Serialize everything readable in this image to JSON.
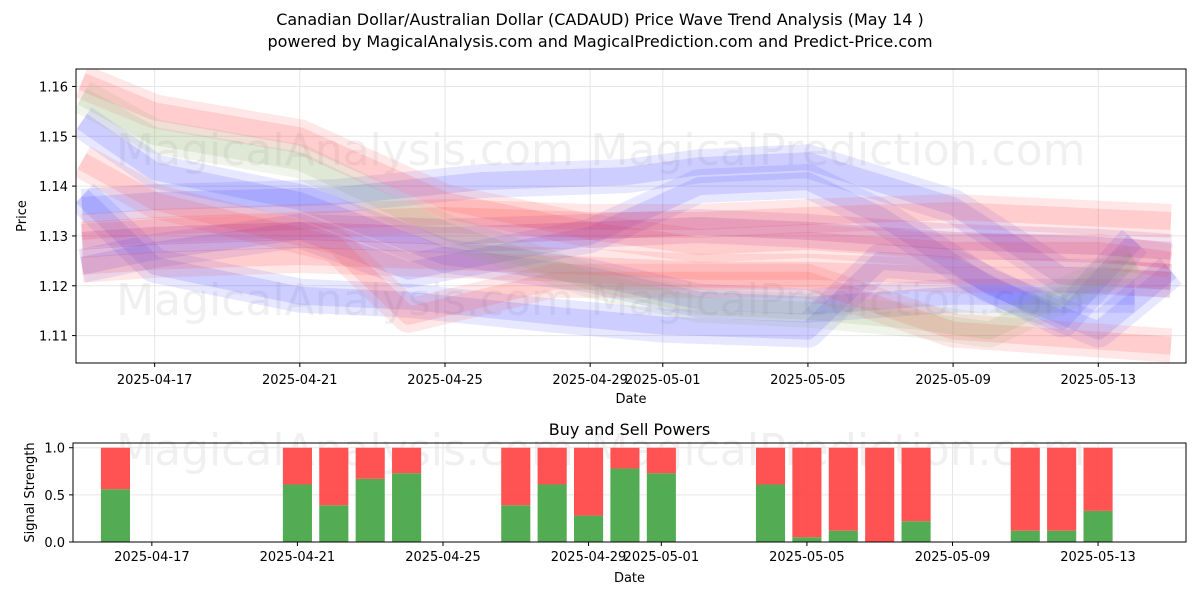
{
  "header": {
    "title": "Canadian Dollar/Australian Dollar (CADAUD) Price Wave Trend Analysis (May 14 )",
    "subtitle": "powered by MagicalAnalysis.com and MagicalPrediction.com and Predict-Price.com"
  },
  "watermark": {
    "text1": "MagicalAnalysis.com",
    "text2": "MagicalPrediction.com"
  },
  "colors": {
    "blue": "#4444ff",
    "red": "#ff4444",
    "green": "#88aa66",
    "purple": "#aa2288",
    "buy": "#4aa84a",
    "sell": "#ff4a4a"
  },
  "chart_data": [
    {
      "type": "line",
      "title": "",
      "xlabel": "Date",
      "ylabel": "Price",
      "x_ticks": [
        "2025-04-17",
        "2025-04-21",
        "2025-04-25",
        "2025-04-29",
        "2025-05-01",
        "2025-05-05",
        "2025-05-09",
        "2025-05-13"
      ],
      "y_ticks": [
        "1.11",
        "1.12",
        "1.13",
        "1.14",
        "1.15",
        "1.16"
      ],
      "ylim": [
        1.1045,
        1.1635
      ],
      "xlim": [
        "2025-04-14T20:00",
        "2025-05-15T10:00"
      ],
      "grid": true,
      "series": [
        {
          "color": "blue",
          "x": [
            "2025-04-15",
            "2025-04-17",
            "2025-04-22",
            "2025-04-26",
            "2025-04-30",
            "2025-05-02",
            "2025-05-05",
            "2025-05-09",
            "2025-05-12",
            "2025-05-15"
          ],
          "values": [
            1.136,
            1.137,
            1.138,
            1.141,
            1.142,
            1.144,
            1.145,
            1.136,
            1.122,
            1.121
          ]
        },
        {
          "color": "blue",
          "x": [
            "2025-04-15",
            "2025-04-17",
            "2025-04-21",
            "2025-04-25",
            "2025-04-29",
            "2025-05-02",
            "2025-05-05",
            "2025-05-09",
            "2025-05-14"
          ],
          "values": [
            1.153,
            1.143,
            1.137,
            1.126,
            1.122,
            1.117,
            1.116,
            1.118,
            1.118
          ]
        },
        {
          "color": "blue",
          "x": [
            "2025-04-15",
            "2025-04-17",
            "2025-04-21",
            "2025-04-24",
            "2025-04-28",
            "2025-05-01",
            "2025-05-05",
            "2025-05-07",
            "2025-05-09",
            "2025-05-12",
            "2025-05-14"
          ],
          "values": [
            1.138,
            1.124,
            1.118,
            1.117,
            1.114,
            1.112,
            1.111,
            1.125,
            1.124,
            1.113,
            1.129
          ]
        },
        {
          "color": "blue",
          "x": [
            "2025-04-15",
            "2025-04-17",
            "2025-04-21",
            "2025-04-24",
            "2025-04-29",
            "2025-05-02",
            "2025-05-05",
            "2025-05-07",
            "2025-05-10",
            "2025-05-13",
            "2025-05-15"
          ],
          "values": [
            1.124,
            1.127,
            1.131,
            1.123,
            1.13,
            1.14,
            1.141,
            1.134,
            1.12,
            1.111,
            1.123
          ]
        },
        {
          "color": "red",
          "x": [
            "2025-04-15",
            "2025-04-17",
            "2025-04-21",
            "2025-04-25",
            "2025-04-29",
            "2025-05-02",
            "2025-05-05",
            "2025-05-09",
            "2025-05-13",
            "2025-05-15"
          ],
          "values": [
            1.161,
            1.155,
            1.15,
            1.137,
            1.131,
            1.128,
            1.129,
            1.127,
            1.127,
            1.125
          ]
        },
        {
          "color": "red",
          "x": [
            "2025-04-15",
            "2025-04-17",
            "2025-04-21",
            "2025-04-25",
            "2025-04-29",
            "2025-05-02",
            "2025-05-05",
            "2025-05-09",
            "2025-05-13",
            "2025-05-15"
          ],
          "values": [
            1.124,
            1.125,
            1.126,
            1.125,
            1.124,
            1.123,
            1.123,
            1.122,
            1.122,
            1.121
          ]
        },
        {
          "color": "red",
          "x": [
            "2025-04-15",
            "2025-04-17",
            "2025-04-22",
            "2025-04-24",
            "2025-04-28",
            "2025-05-02",
            "2025-05-05",
            "2025-05-09",
            "2025-05-13",
            "2025-05-15"
          ],
          "values": [
            1.145,
            1.137,
            1.128,
            1.114,
            1.121,
            1.121,
            1.121,
            1.111,
            1.109,
            1.108
          ]
        },
        {
          "color": "red",
          "x": [
            "2025-04-15",
            "2025-04-17",
            "2025-04-21",
            "2025-04-25",
            "2025-04-29",
            "2025-05-02",
            "2025-05-05",
            "2025-05-09",
            "2025-05-12",
            "2025-05-15"
          ],
          "values": [
            1.131,
            1.132,
            1.133,
            1.134,
            1.133,
            1.133,
            1.134,
            1.135,
            1.134,
            1.133
          ]
        },
        {
          "color": "green",
          "x": [
            "2025-04-15",
            "2025-04-17",
            "2025-04-21",
            "2025-04-25",
            "2025-04-29",
            "2025-05-02",
            "2025-05-05",
            "2025-05-08",
            "2025-05-10",
            "2025-05-14"
          ],
          "values": [
            1.158,
            1.15,
            1.145,
            1.131,
            1.121,
            1.116,
            1.115,
            1.113,
            1.111,
            1.125
          ]
        },
        {
          "color": "purple",
          "x": [
            "2025-04-15",
            "2025-04-17",
            "2025-04-21",
            "2025-04-25",
            "2025-04-29",
            "2025-05-02",
            "2025-05-05",
            "2025-05-09",
            "2025-05-13",
            "2025-05-15"
          ],
          "values": [
            1.129,
            1.13,
            1.131,
            1.13,
            1.131,
            1.132,
            1.131,
            1.129,
            1.128,
            1.127
          ]
        }
      ]
    },
    {
      "type": "bar",
      "title": "Buy and Sell Powers",
      "xlabel": "Date",
      "ylabel": "Signal Strength",
      "x_ticks": [
        "2025-04-17",
        "2025-04-21",
        "2025-04-25",
        "2025-04-29",
        "2025-05-01",
        "2025-05-05",
        "2025-05-09",
        "2025-05-13"
      ],
      "y_ticks": [
        "0.0",
        "0.5",
        "1.0"
      ],
      "ylim": [
        0,
        1.05
      ],
      "xlim": [
        "2025-04-14T20:00",
        "2025-05-15T10:00"
      ],
      "grid": true,
      "categories": [
        "2025-04-16",
        "2025-04-21",
        "2025-04-22",
        "2025-04-23",
        "2025-04-24",
        "2025-04-27",
        "2025-04-28",
        "2025-04-29",
        "2025-04-30",
        "2025-05-01",
        "2025-05-04",
        "2025-05-05",
        "2025-05-06",
        "2025-05-07",
        "2025-05-08",
        "2025-05-11",
        "2025-05-12",
        "2025-05-13"
      ],
      "series": [
        {
          "name": "Buy",
          "color": "buy",
          "values": [
            0.56,
            0.61,
            0.39,
            0.67,
            0.73,
            0.39,
            0.61,
            0.28,
            0.78,
            0.73,
            0.61,
            0.05,
            0.12,
            0.0,
            0.22,
            0.12,
            0.12,
            0.33
          ]
        },
        {
          "name": "Sell",
          "color": "sell",
          "values": [
            0.44,
            0.39,
            0.61,
            0.33,
            0.27,
            0.61,
            0.39,
            0.72,
            0.22,
            0.27,
            0.39,
            0.95,
            0.88,
            1.0,
            0.78,
            0.88,
            0.88,
            0.67
          ]
        }
      ]
    }
  ]
}
